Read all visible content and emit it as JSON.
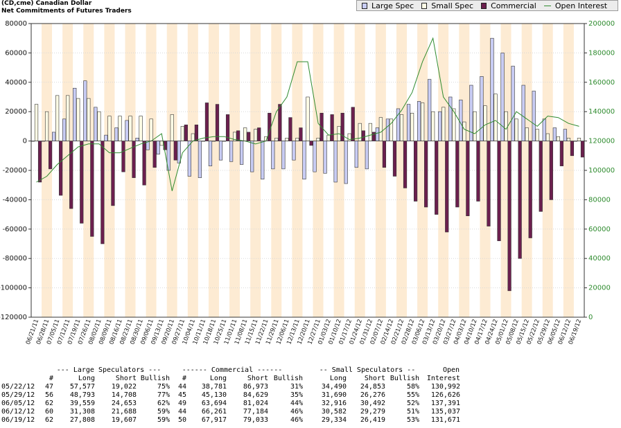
{
  "header": {
    "title1": "(CD,cme) Canadian Dollar",
    "title2": "Net Commitments of Futures Traders"
  },
  "legend": {
    "items": [
      {
        "label": "Large Spec",
        "color": "#c8ccf4",
        "kind": "bar"
      },
      {
        "label": "Small Spec",
        "color": "#fffde6",
        "kind": "bar"
      },
      {
        "label": "Commercial",
        "color": "#6b1f4e",
        "kind": "bar"
      },
      {
        "label": "Open Interest",
        "color": "#2e8b2e",
        "kind": "line"
      }
    ]
  },
  "colors": {
    "large_spec": "#c8ccf4",
    "small_spec": "#fffde6",
    "commercial": "#6b1f4e",
    "open_interest": "#2e8b2e",
    "band": "#fdebd3",
    "bar_stroke": "#333333"
  },
  "chart_data": {
    "type": "bar",
    "left_axis": {
      "min": -120000,
      "max": 80000,
      "step": 20000,
      "ticks": [
        "80000",
        "60000",
        "40000",
        "20000",
        "0",
        "-20000",
        "-40000",
        "-60000",
        "-80000",
        "-100000",
        "-120000"
      ]
    },
    "right_axis": {
      "min": 0,
      "max": 200000,
      "step": 20000,
      "ticks": [
        "200000",
        "180000",
        "160000",
        "140000",
        "120000",
        "100000",
        "80000",
        "60000",
        "40000",
        "20000",
        "0"
      ]
    },
    "categories": [
      "06/21/11",
      "06/28/11",
      "07/05/11",
      "07/12/11",
      "07/19/11",
      "07/26/11",
      "08/02/11",
      "08/09/11",
      "08/16/11",
      "08/23/11",
      "08/30/11",
      "09/06/11",
      "09/13/11",
      "09/20/11",
      "09/27/11",
      "10/04/11",
      "10/11/11",
      "10/18/11",
      "10/25/11",
      "11/01/11",
      "11/08/11",
      "11/15/11",
      "11/22/11",
      "11/29/11",
      "12/06/11",
      "12/13/11",
      "12/20/11",
      "12/27/11",
      "01/03/12",
      "01/10/12",
      "01/17/12",
      "01/24/12",
      "01/31/12",
      "02/07/12",
      "02/14/12",
      "02/21/12",
      "02/28/12",
      "03/06/12",
      "03/13/12",
      "03/20/12",
      "03/27/12",
      "04/03/12",
      "04/10/12",
      "04/17/12",
      "04/24/12",
      "05/01/12",
      "05/08/12",
      "05/15/12",
      "05/22/12",
      "05/29/12",
      "06/05/12",
      "06/12/12",
      "06/19/12"
    ],
    "x_tick_labels": [
      "06/21/11",
      "06/28/11",
      "07/05/11",
      "07/12/11",
      "07/19/11",
      "07/26/11",
      "08/02/11",
      "08/09/11",
      "08/16/11",
      "08/23/11",
      "08/30/11",
      "09/06/11",
      "09/13/11",
      "09/20/11",
      "09/27/11",
      "10/04/11",
      "10/11/11",
      "10/18/11",
      "10/25/11",
      "11/01/11",
      "11/08/11",
      "11/15/11",
      "11/22/11",
      "11/29/11",
      "12/06/11",
      "12/13/11",
      "12/20/11",
      "12/27/11",
      "01/03/12",
      "01/10/12",
      "01/17/12",
      "01/24/12",
      "01/31/12",
      "02/07/12",
      "02/14/12",
      "02/21/12",
      "02/28/12",
      "03/06/12",
      "03/13/12",
      "03/20/12",
      "03/27/12",
      "04/03/12",
      "04/10/12",
      "04/17/12",
      "04/24/12",
      "05/01/12",
      "05/08/12",
      "05/15/12",
      "05/22/12",
      "05/29/12",
      "06/05/12",
      "06/12/12",
      "06/19/12"
    ],
    "series": [
      {
        "name": "Large Spec",
        "axis": "left",
        "values": [
          0,
          0,
          6000,
          15000,
          36000,
          41000,
          23000,
          4000,
          9000,
          14000,
          2000,
          -6000,
          -9000,
          -20000,
          -15000,
          -24000,
          -25000,
          -17000,
          -13000,
          -14000,
          -16000,
          -21000,
          -26000,
          -19000,
          -19000,
          -13000,
          -26000,
          -21000,
          -22000,
          -28000,
          -29000,
          -18000,
          -19000,
          9000,
          15000,
          22000,
          25000,
          27000,
          42000,
          20000,
          30000,
          28000,
          38000,
          44000,
          70000,
          60000,
          51000,
          38000,
          34000,
          15000,
          9000,
          8000,
          0
        ]
      },
      {
        "name": "Small Spec",
        "axis": "left",
        "values": [
          25000,
          20000,
          31000,
          31000,
          29000,
          29000,
          20000,
          17000,
          17000,
          17000,
          17000,
          15000,
          -3000,
          18000,
          10000,
          5000,
          0,
          0,
          0,
          6000,
          9000,
          8000,
          3000,
          2000,
          2000,
          2000,
          30000,
          2000,
          4000,
          10000,
          5000,
          12000,
          12000,
          16000,
          15000,
          18000,
          19000,
          26000,
          20000,
          23000,
          22000,
          13000,
          20000,
          24000,
          32000,
          20000,
          15000,
          9000,
          8000,
          5000,
          3000,
          2000,
          2000
        ]
      },
      {
        "name": "Commercial",
        "axis": "left",
        "values": [
          -28000,
          -19000,
          -37000,
          -46000,
          -56000,
          -65000,
          -70000,
          -44000,
          -21000,
          -25000,
          -30000,
          -18000,
          -6000,
          -13000,
          11000,
          11000,
          26000,
          25000,
          18000,
          7000,
          6000,
          9000,
          19000,
          25000,
          16000,
          9000,
          -3000,
          19000,
          18000,
          19000,
          23000,
          7000,
          6000,
          -18000,
          -24000,
          -32000,
          -41000,
          -45000,
          -50000,
          -62000,
          -45000,
          -51000,
          -41000,
          -58000,
          -68000,
          -102000,
          -80000,
          -66000,
          -48000,
          -40000,
          -17000,
          -10000,
          -11000
        ]
      },
      {
        "name": "Open Interest",
        "axis": "right",
        "values": [
          92000,
          96000,
          104000,
          110000,
          116000,
          118000,
          118000,
          112000,
          112000,
          115000,
          118000,
          120000,
          125000,
          86000,
          112000,
          120000,
          122000,
          123000,
          123000,
          121000,
          120000,
          118000,
          120000,
          140000,
          150000,
          174000,
          174000,
          132000,
          124000,
          125000,
          121000,
          122000,
          124000,
          126000,
          132000,
          141000,
          153000,
          174000,
          190000,
          150000,
          140000,
          128000,
          125000,
          131000,
          134000,
          128000,
          140000,
          135000,
          130000,
          137000,
          136000,
          132000,
          130000
        ]
      }
    ]
  },
  "table": {
    "group_headers": [
      "--- Large Speculators ---",
      "------ Commercial ------",
      "-- Small Speculators --",
      "Open"
    ],
    "col_headers": [
      "#",
      "Long",
      "Short",
      "Bullish",
      "#",
      "Long",
      "Short",
      "Bullish",
      "Long",
      "Short",
      "Bullish",
      "Interest"
    ],
    "rows": [
      [
        "05/22/12",
        "47",
        "57,577",
        "19,022",
        "75%",
        "44",
        "38,781",
        "86,973",
        "31%",
        "34,490",
        "24,853",
        "58%",
        "130,992"
      ],
      [
        "05/29/12",
        "56",
        "48,793",
        "14,708",
        "77%",
        "45",
        "45,130",
        "84,629",
        "35%",
        "31,690",
        "26,276",
        "55%",
        "126,626"
      ],
      [
        "06/05/12",
        "62",
        "39,559",
        "24,653",
        "62%",
        "49",
        "63,694",
        "81,024",
        "44%",
        "32,916",
        "30,492",
        "52%",
        "137,391"
      ],
      [
        "06/12/12",
        "60",
        "31,308",
        "21,688",
        "59%",
        "44",
        "66,261",
        "77,184",
        "46%",
        "30,582",
        "29,279",
        "51%",
        "135,037"
      ],
      [
        "06/19/12",
        "62",
        "27,808",
        "19,607",
        "59%",
        "50",
        "67,917",
        "79,033",
        "46%",
        "29,334",
        "26,419",
        "53%",
        "131,671"
      ]
    ]
  }
}
